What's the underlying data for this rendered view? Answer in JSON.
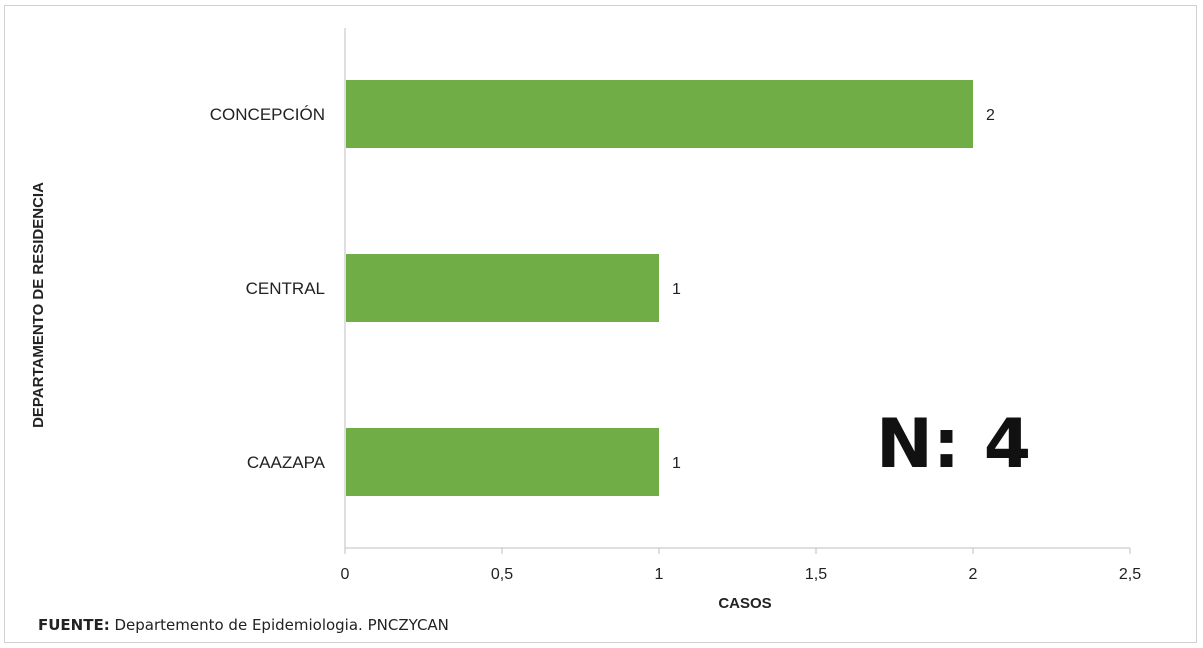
{
  "chart_data": {
    "type": "bar",
    "orientation": "horizontal",
    "categories": [
      "CONCEPCIÓN",
      "CENTRAL",
      "CAAZAPA"
    ],
    "values": [
      2,
      1,
      1
    ],
    "data_labels": [
      "2",
      "1",
      "1"
    ],
    "xlabel": "CASOS",
    "ylabel": "DEPARTAMENTO DE RESIDENCIA",
    "xlim": [
      0,
      2.5
    ],
    "xticks": [
      0,
      0.5,
      1,
      1.5,
      2,
      2.5
    ],
    "xtick_labels": [
      "0",
      "0,5",
      "1",
      "1,5",
      "2",
      "2,5"
    ],
    "grid": false,
    "bar_color": "#70ad47"
  },
  "annotation": {
    "total": "N: 4"
  },
  "source": {
    "label": "FUENTE:",
    "text": " Departemento de Epidemiologia.  PNCZYCAN"
  }
}
